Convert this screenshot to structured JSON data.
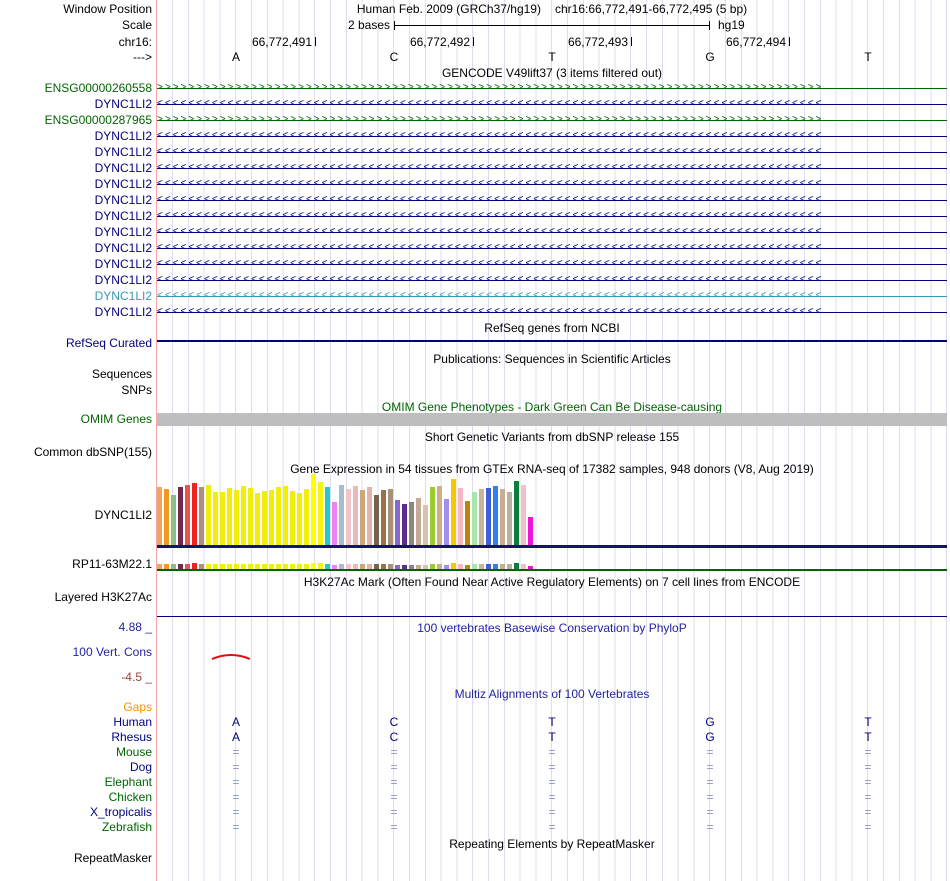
{
  "colors": {
    "navy": "#000080",
    "green": "#006400",
    "teal": "#3798b8",
    "title_blue": "#23239f",
    "min_red": "#9b4040",
    "gaps_orange": "#f29400",
    "eq_mark": "#8a94cb",
    "omim_gray": "#bebebe",
    "baseline_navy": "#14146e",
    "mini_green_line": "#006400",
    "phylop_curve_red": "#e01010",
    "guideline": "#dcdcf2",
    "left_border_pink": "#f5a8a8"
  },
  "header": {
    "window_position_label": "Window Position",
    "assembly_text": "Human Feb. 2009 (GRCh37/hg19)",
    "position_text": "chr16:66,772,491-66,772,495 (5 bp)",
    "scale_label": "Scale",
    "scale_text": "2 bases",
    "scale_right_text": "hg19",
    "chrom_label": "chr16:",
    "strand_label": "--->",
    "coordinates": [
      "66,772,491",
      "66,772,492",
      "66,772,493",
      "66,772,494"
    ],
    "bases": [
      "A",
      "C",
      "T",
      "G",
      "T"
    ]
  },
  "gencode": {
    "title": "GENCODE V49lift37 (3 items filtered out)",
    "rows": [
      {
        "label": "ENSG00000260558",
        "color": "green",
        "direction": "right"
      },
      {
        "label": "DYNC1LI2",
        "color": "navy",
        "direction": "left"
      },
      {
        "label": "ENSG00000287965",
        "color": "green",
        "direction": "right"
      },
      {
        "label": "DYNC1LI2",
        "color": "navy",
        "direction": "left"
      },
      {
        "label": "DYNC1LI2",
        "color": "navy",
        "direction": "left"
      },
      {
        "label": "DYNC1LI2",
        "color": "navy",
        "direction": "left"
      },
      {
        "label": "DYNC1LI2",
        "color": "navy",
        "direction": "left"
      },
      {
        "label": "DYNC1LI2",
        "color": "navy",
        "direction": "left"
      },
      {
        "label": "DYNC1LI2",
        "color": "navy",
        "direction": "left"
      },
      {
        "label": "DYNC1LI2",
        "color": "navy",
        "direction": "left"
      },
      {
        "label": "DYNC1LI2",
        "color": "navy",
        "direction": "left"
      },
      {
        "label": "DYNC1LI2",
        "color": "navy",
        "direction": "left"
      },
      {
        "label": "DYNC1LI2",
        "color": "navy",
        "direction": "left"
      },
      {
        "label": "DYNC1LI2",
        "color": "teal",
        "direction": "left"
      },
      {
        "label": "DYNC1LI2",
        "color": "navy",
        "direction": "left"
      }
    ]
  },
  "refseq": {
    "title": "RefSeq genes from NCBI",
    "label": "RefSeq Curated"
  },
  "publications": {
    "title": "Publications: Sequences in Scientific Articles",
    "label_sequences": "Sequences",
    "label_snps": "SNPs"
  },
  "omim": {
    "title": "OMIM Gene Phenotypes - Dark Green Can Be Disease-causing",
    "label": "OMIM Genes"
  },
  "dbsnp": {
    "title": "Short Genetic Variants from dbSNP release 155",
    "label": "Common dbSNP(155)"
  },
  "gtex": {
    "title": "Gene Expression in 54 tissues from GTEx RNA-seq of 17382 samples, 948 donors (V8, Aug 2019)",
    "gene_label": "DYNC1LI2",
    "mini_gene_label": "RP11-63M22.1"
  },
  "h3k27ac": {
    "title": "H3K27Ac Mark (Often Found Near Active Regulatory Elements) on 7 cell lines from ENCODE",
    "label": "Layered H3K27Ac"
  },
  "conservation": {
    "title": "100 vertebrates Basewise Conservation by PhyloP",
    "label": "100 Vert. Cons",
    "max_label": "4.88 _",
    "min_label": "-4.5 _"
  },
  "multiz": {
    "title": "Multiz Alignments of 100 Vertebrates",
    "rows": [
      {
        "label": "Gaps",
        "color": "orange",
        "cells": [
          "",
          "",
          "",
          "",
          ""
        ]
      },
      {
        "label": "Human",
        "color": "navy",
        "cells": [
          "A",
          "C",
          "T",
          "G",
          "T"
        ]
      },
      {
        "label": "Rhesus",
        "color": "navy",
        "cells": [
          "A",
          "C",
          "T",
          "G",
          "T"
        ]
      },
      {
        "label": "Mouse",
        "color": "green",
        "cells": [
          "=",
          "=",
          "=",
          "=",
          "="
        ]
      },
      {
        "label": "Dog",
        "color": "navy",
        "cells": [
          "=",
          "=",
          "=",
          "=",
          "="
        ]
      },
      {
        "label": "Elephant",
        "color": "green",
        "cells": [
          "=",
          "=",
          "=",
          "=",
          "="
        ]
      },
      {
        "label": "Chicken",
        "color": "green",
        "cells": [
          "=",
          "=",
          "=",
          "=",
          "="
        ]
      },
      {
        "label": "X_tropicalis",
        "color": "navy",
        "cells": [
          "=",
          "=",
          "=",
          "=",
          "="
        ]
      },
      {
        "label": "Zebrafish",
        "color": "green",
        "cells": [
          "=",
          "=",
          "=",
          "=",
          "="
        ]
      }
    ]
  },
  "repeatmasker": {
    "title": "Repeating Elements by RepeatMasker",
    "label": "RepeatMasker"
  },
  "chart_data": {
    "type": "bar",
    "title": "Gene Expression in 54 tissues from GTEx RNA-seq of 17382 samples, 948 donors (V8, Aug 2019)",
    "gene": "DYNC1LI2",
    "note": "54 GTEx tissue bars; tissue names not shown in screenshot; values are bar heights in px read from image (relative expression)",
    "values": [
      58,
      56,
      50,
      58,
      60,
      62,
      58,
      60,
      53,
      53,
      57,
      55,
      59,
      57,
      52,
      54,
      55,
      58,
      59,
      54,
      52,
      56,
      71,
      63,
      58,
      43,
      60,
      56,
      59,
      55,
      58,
      50,
      55,
      56,
      45,
      41,
      43,
      47,
      40,
      58,
      59,
      46,
      66,
      57,
      44,
      53,
      56,
      57,
      59,
      56,
      53,
      64,
      60,
      28
    ],
    "bar_colors": [
      "#f2a45c",
      "#f09b1f",
      "#8fbc8f",
      "#6e2a4f",
      "#e4564b",
      "#ee2222",
      "#b08f80",
      "#efef0a",
      "#efef0a",
      "#efef0a",
      "#efef0a",
      "#efef0a",
      "#efef0a",
      "#efef0a",
      "#efef0a",
      "#efef0a",
      "#efef0a",
      "#efef0a",
      "#efef0a",
      "#efef0a",
      "#efef0a",
      "#efef0a",
      "#ffff00",
      "#f5f513",
      "#25c9c9",
      "#ef82ee",
      "#a4bdd0",
      "#f2c6c6",
      "#eab9b9",
      "#cfa67c",
      "#e5b3ab",
      "#75654f",
      "#9c7148",
      "#a8917a",
      "#8968cd",
      "#5c2d91",
      "#8f857a",
      "#c7a994",
      "#d9c2ab",
      "#9acd32",
      "#cdb088",
      "#9f8fef",
      "#f5c800",
      "#f4b8c0",
      "#b8860b",
      "#a8e6b0",
      "#cbb39b",
      "#3b5fd9",
      "#2f80e8",
      "#c9ad92",
      "#b9b0a4",
      "#0d7d3d",
      "#f6bfc6",
      "#f014d8"
    ],
    "secondary_gene": "RP11-63M22.1",
    "ylim": [
      0,
      71
    ],
    "legend": "none"
  }
}
